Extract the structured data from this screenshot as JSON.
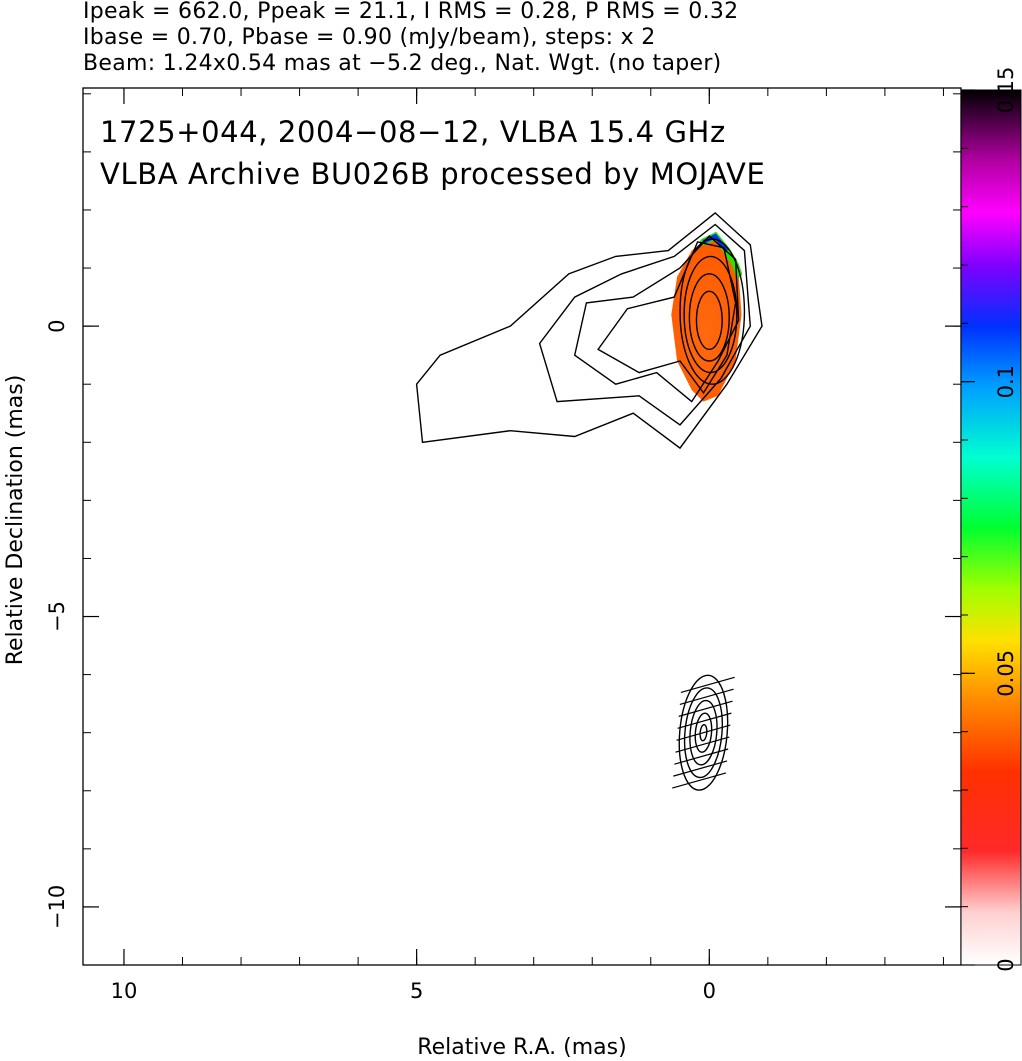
{
  "header": {
    "line1": "Ipeak = 662.0, Ppeak = 21.1, I RMS = 0.28, P RMS = 0.32",
    "line2": "Ibase = 0.70, Pbase = 0.90 (mJy/beam), steps: x 2",
    "line3": "Beam: 1.24x0.54 mas at −5.2 deg., Nat. Wgt. (no taper)"
  },
  "chart_data": {
    "type": "contour",
    "annotations": [
      "1725+044, 2004−08−12, VLBA 15.4 GHz",
      "VLBA Archive BU026B processed by MOJAVE"
    ],
    "xlabel": "Relative R.A. (mas)",
    "ylabel": "Relative Declination (mas)",
    "xlim": [
      10.7,
      -4.3
    ],
    "ylim": [
      -11,
      4.1
    ],
    "x_ticks": [
      {
        "v": 10,
        "label": "10"
      },
      {
        "v": 5,
        "label": "5"
      },
      {
        "v": 0,
        "label": "0"
      }
    ],
    "y_ticks": [
      {
        "v": 0,
        "label": "0"
      },
      {
        "v": -5,
        "label": "−5"
      },
      {
        "v": -10,
        "label": "−10"
      }
    ],
    "colorbar": {
      "range": [
        0,
        0.15
      ],
      "ticks": [
        {
          "v": 0,
          "label": "0"
        },
        {
          "v": 0.05,
          "label": "0.05"
        },
        {
          "v": 0.1,
          "label": "0.1"
        },
        {
          "v": 0.15,
          "label": "0.15"
        }
      ]
    },
    "stokes_i_image": {
      "peak_position": [
        0,
        0
      ],
      "contours_mas": [
        [
          [
            1.3,
            -1.5
          ],
          [
            0.5,
            -2.1
          ],
          [
            -0.3,
            -1.0
          ],
          [
            -0.9,
            0.0
          ],
          [
            -0.7,
            1.4
          ],
          [
            -0.1,
            1.95
          ],
          [
            0.7,
            1.3
          ],
          [
            1.6,
            1.2
          ],
          [
            2.4,
            0.9
          ],
          [
            3.4,
            0.0
          ],
          [
            4.6,
            -0.5
          ],
          [
            5.0,
            -1.0
          ],
          [
            4.9,
            -2.0
          ],
          [
            3.4,
            -1.8
          ],
          [
            2.3,
            -1.9
          ],
          [
            1.3,
            -1.5
          ]
        ],
        [
          [
            1.2,
            -1.2
          ],
          [
            0.5,
            -1.7
          ],
          [
            -0.2,
            -0.9
          ],
          [
            -0.7,
            0.0
          ],
          [
            -0.6,
            1.3
          ],
          [
            -0.1,
            1.75
          ],
          [
            0.6,
            1.2
          ],
          [
            1.5,
            0.9
          ],
          [
            2.3,
            0.5
          ],
          [
            2.9,
            -0.3
          ],
          [
            2.6,
            -1.3
          ],
          [
            1.2,
            -1.2
          ]
        ],
        [
          [
            0.9,
            -0.8
          ],
          [
            0.3,
            -1.3
          ],
          [
            -0.15,
            -0.6
          ],
          [
            -0.5,
            0.1
          ],
          [
            -0.45,
            1.15
          ],
          [
            0.0,
            1.55
          ],
          [
            0.5,
            1.0
          ],
          [
            1.3,
            0.5
          ],
          [
            2.1,
            0.4
          ],
          [
            2.3,
            -0.5
          ],
          [
            1.6,
            -1.0
          ],
          [
            0.9,
            -0.8
          ]
        ],
        [
          [
            0.5,
            -0.6
          ],
          [
            0.1,
            -1.15
          ],
          [
            -0.3,
            -0.5
          ],
          [
            -0.45,
            0.4
          ],
          [
            -0.25,
            1.35
          ],
          [
            0.2,
            1.45
          ],
          [
            0.6,
            0.5
          ],
          [
            1.4,
            0.3
          ],
          [
            1.9,
            -0.4
          ],
          [
            1.2,
            -0.8
          ],
          [
            0.5,
            -0.6
          ]
        ]
      ],
      "contour_ellipses_mas": [
        {
          "cx": -0.05,
          "cy": 0.25,
          "rx": 0.55,
          "ry": 1.25
        },
        {
          "cx": -0.02,
          "cy": 0.2,
          "rx": 0.45,
          "ry": 1.0
        },
        {
          "cx": 0.0,
          "cy": 0.15,
          "rx": 0.34,
          "ry": 0.75
        },
        {
          "cx": 0.0,
          "cy": 0.1,
          "rx": 0.22,
          "ry": 0.5
        }
      ]
    },
    "polarization_mas": {
      "polygon": [
        [
          0.1,
          -1.3
        ],
        [
          0.3,
          -1.1
        ],
        [
          0.55,
          -0.6
        ],
        [
          0.65,
          0.2
        ],
        [
          0.55,
          0.85
        ],
        [
          0.3,
          1.3
        ],
        [
          0.05,
          1.5
        ],
        [
          -0.25,
          1.45
        ],
        [
          -0.5,
          0.9
        ],
        [
          -0.55,
          0.2
        ],
        [
          -0.45,
          -0.6
        ],
        [
          -0.15,
          -1.2
        ],
        [
          0.1,
          -1.3
        ]
      ],
      "rainbow_rim": [
        [
          0.1,
          1.45
        ],
        [
          -0.1,
          1.55
        ],
        [
          -0.3,
          1.3
        ],
        [
          -0.45,
          1.05
        ],
        [
          -0.5,
          0.9
        ]
      ]
    },
    "beam_mas": {
      "x": 0.1,
      "y": -7.0,
      "major": 1.24,
      "minor": 0.54,
      "pa_deg": -5.2
    }
  }
}
